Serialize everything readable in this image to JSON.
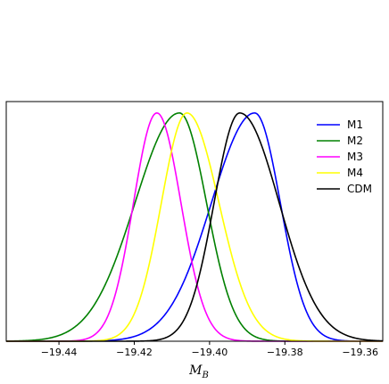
{
  "chart_data": {
    "type": "line",
    "title": "",
    "xlabel": "M_B",
    "xlabel_main": "M",
    "xlabel_sub": "B",
    "ylabel": "",
    "xlim": [
      -19.454,
      -19.354
    ],
    "ylim": [
      0,
      1.05
    ],
    "x_ticks": [
      -19.44,
      -19.42,
      -19.4,
      -19.38,
      -19.36
    ],
    "x_tick_labels": [
      "−19.44",
      "−19.42",
      "−19.40",
      "−19.38",
      "−19.36"
    ],
    "y_ticks_visible": false,
    "grid": false,
    "legend_position": "top-right",
    "series": [
      {
        "name": "M1",
        "color": "#0000ff",
        "mu": -19.388,
        "sigma_left": 0.0115,
        "sigma_right": 0.0068
      },
      {
        "name": "M2",
        "color": "#008000",
        "mu": -19.408,
        "sigma_left": 0.0118,
        "sigma_right": 0.0072
      },
      {
        "name": " M3",
        "color": "#ff00ff",
        "mu": -19.414,
        "sigma_left": 0.0062,
        "sigma_right": 0.0064
      },
      {
        "name": "M4",
        "color": "#ffff00",
        "mu": -19.406,
        "sigma_left": 0.0068,
        "sigma_right": 0.0085
      },
      {
        "name": "CDM",
        "color": "#000000",
        "mu": -19.392,
        "sigma_left": 0.0068,
        "sigma_right": 0.0105
      }
    ]
  }
}
